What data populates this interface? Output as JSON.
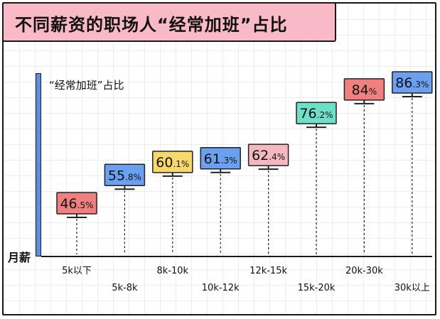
{
  "title": "不同薪资的职场人“经常加班”占比",
  "chart_data": {
    "type": "bar",
    "title": "不同薪资的职场人“经常加班”占比",
    "ylabel": "“经常加班”占比",
    "xlabel": "月薪",
    "categories": [
      "5k以下",
      "5k-8k",
      "8k-10k",
      "10k-12k",
      "12k-15k",
      "15k-20k",
      "20k-30k",
      "30k以上"
    ],
    "series": [
      {
        "values": [
          46.5,
          55.8,
          60.1,
          61.3,
          62.4,
          76.2,
          84,
          86.3
        ],
        "value_labels": [
          {
            "main": "46",
            "sub": ".5%"
          },
          {
            "main": "55",
            "sub": ".8%"
          },
          {
            "main": "60",
            "sub": ".1%"
          },
          {
            "main": "61",
            "sub": ".3%"
          },
          {
            "main": "62",
            "sub": ".4%"
          },
          {
            "main": "76",
            "sub": ".2%"
          },
          {
            "main": "84",
            "sub": "%"
          },
          {
            "main": "86",
            "sub": ".3%"
          }
        ],
        "colors": [
          "#f08080",
          "#6b9ff0",
          "#f7d86b",
          "#6b9ff0",
          "#f5b8c0",
          "#6fe0c8",
          "#f08080",
          "#6b9ff0"
        ]
      }
    ],
    "ylim": [
      35,
      100
    ],
    "grid": true
  }
}
